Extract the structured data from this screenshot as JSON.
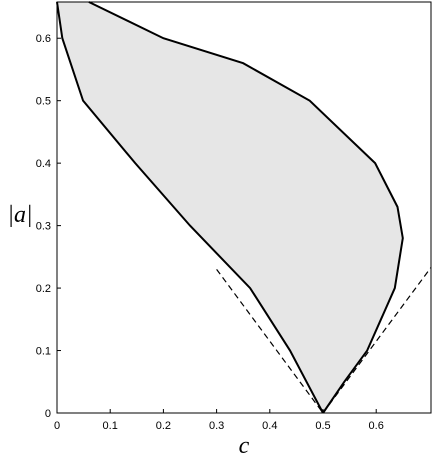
{
  "chart_data": {
    "type": "line",
    "xlabel": "c",
    "ylabel": "|a|",
    "xlim": [
      0,
      0.703
    ],
    "ylim": [
      0,
      0.658
    ],
    "xticks": [
      0,
      0.1,
      0.2,
      0.3,
      0.4,
      0.5,
      0.6
    ],
    "yticks": [
      0,
      0.1,
      0.2,
      0.3,
      0.4,
      0.5,
      0.6
    ],
    "region_color": "#e6e6e6",
    "series": [
      {
        "color": "#000000",
        "dashed": false,
        "x": [
          0,
          0.01,
          0.049,
          0.147,
          0.25,
          0.363,
          0.438,
          0.5
        ],
        "values": [
          0.658,
          0.6,
          0.5,
          0.4,
          0.3,
          0.2,
          0.1,
          0
        ]
      },
      {
        "color": "#000000",
        "dashed": false,
        "x": [
          0.06,
          0.2,
          0.35,
          0.475,
          0.598,
          0.64,
          0.65,
          0.635,
          0.583,
          0.54,
          0.5
        ],
        "values": [
          0.658,
          0.6,
          0.56,
          0.5,
          0.4,
          0.33,
          0.28,
          0.2,
          0.1,
          0.05,
          0
        ]
      },
      {
        "color": "#000000",
        "dashed": true,
        "x": [
          0.3,
          0.5
        ],
        "values": [
          0.23,
          0
        ]
      },
      {
        "color": "#000000",
        "dashed": true,
        "x": [
          0.5,
          0.703
        ],
        "values": [
          0,
          0.233
        ]
      }
    ]
  }
}
